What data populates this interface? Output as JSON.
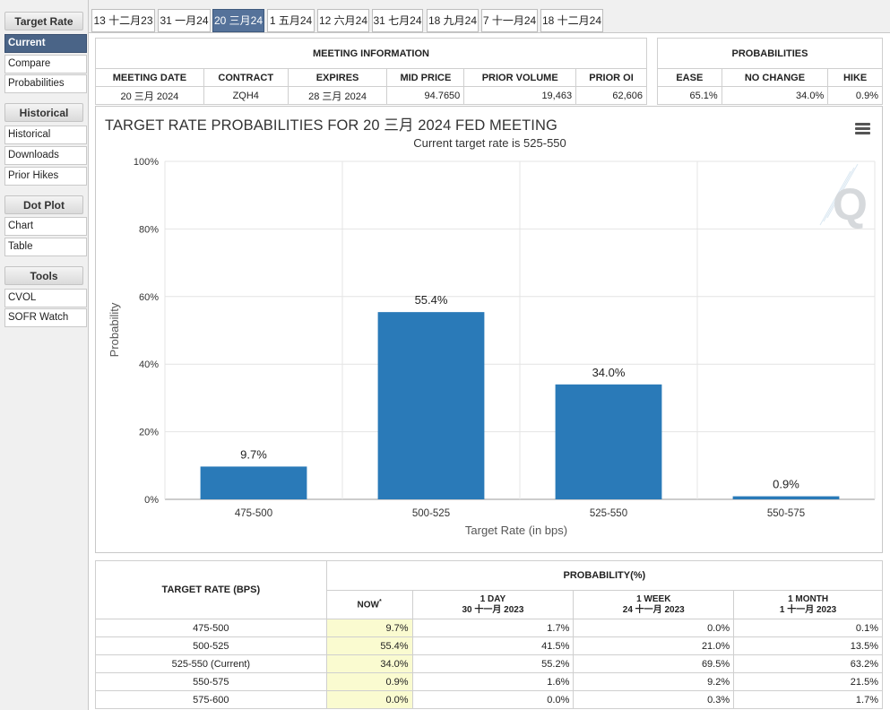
{
  "sidebar": {
    "sections": [
      {
        "title": "Target Rate",
        "items": [
          {
            "label": "Current",
            "active": true
          },
          {
            "label": "Compare",
            "active": false
          },
          {
            "label": "Probabilities",
            "active": false
          }
        ]
      },
      {
        "title": "Historical",
        "items": [
          {
            "label": "Historical",
            "active": false
          },
          {
            "label": "Downloads",
            "active": false
          },
          {
            "label": "Prior Hikes",
            "active": false
          }
        ]
      },
      {
        "title": "Dot Plot",
        "items": [
          {
            "label": "Chart",
            "active": false
          },
          {
            "label": "Table",
            "active": false
          }
        ]
      },
      {
        "title": "Tools",
        "items": [
          {
            "label": "CVOL",
            "active": false
          },
          {
            "label": "SOFR Watch",
            "active": false
          }
        ]
      }
    ]
  },
  "tabs": [
    {
      "label": "13 十二月23",
      "active": false
    },
    {
      "label": "31 一月24",
      "active": false
    },
    {
      "label": "20 三月24",
      "active": true
    },
    {
      "label": "1 五月24",
      "active": false
    },
    {
      "label": "12 六月24",
      "active": false
    },
    {
      "label": "31 七月24",
      "active": false
    },
    {
      "label": "18 九月24",
      "active": false
    },
    {
      "label": "7 十一月24",
      "active": false
    },
    {
      "label": "18 十二月24",
      "active": false
    }
  ],
  "meeting_info": {
    "title": "MEETING INFORMATION",
    "headers": [
      "MEETING DATE",
      "CONTRACT",
      "EXPIRES",
      "MID PRICE",
      "PRIOR VOLUME",
      "PRIOR OI"
    ],
    "values": [
      "20 三月 2024",
      "ZQH4",
      "28 三月 2024",
      "94.7650",
      "19,463",
      "62,606"
    ]
  },
  "probabilities": {
    "title": "PROBABILITIES",
    "headers": [
      "EASE",
      "NO CHANGE",
      "HIKE"
    ],
    "values": [
      "65.1%",
      "34.0%",
      "0.9%"
    ]
  },
  "chart_data": {
    "type": "bar",
    "title": "TARGET RATE PROBABILITIES FOR 20 三月 2024 FED MEETING",
    "subtitle": "Current target rate is 525-550",
    "xlabel": "Target Rate (in bps)",
    "ylabel": "Probability",
    "categories": [
      "475-500",
      "500-525",
      "525-550",
      "550-575"
    ],
    "values": [
      9.7,
      55.4,
      34.0,
      0.9
    ],
    "data_labels": [
      "9.7%",
      "55.4%",
      "34.0%",
      "0.9%"
    ],
    "yticks": [
      "0%",
      "20%",
      "40%",
      "60%",
      "80%",
      "100%"
    ],
    "ylim": [
      0,
      100
    ],
    "grid": true,
    "color": "#2a7ab8"
  },
  "prob_table": {
    "col_header": "TARGET RATE (BPS)",
    "group_header": "PROBABILITY(%)",
    "now_label": "NOW",
    "now_mark": "*",
    "periods": [
      {
        "label": "1 DAY",
        "date": "30 十一月 2023"
      },
      {
        "label": "1 WEEK",
        "date": "24 十一月 2023"
      },
      {
        "label": "1 MONTH",
        "date": "1 十一月 2023"
      }
    ],
    "rows": [
      {
        "rate": "475-500",
        "now": "9.7%",
        "d1": "1.7%",
        "w1": "0.0%",
        "m1": "0.1%"
      },
      {
        "rate": "500-525",
        "now": "55.4%",
        "d1": "41.5%",
        "w1": "21.0%",
        "m1": "13.5%"
      },
      {
        "rate": "525-550 (Current)",
        "now": "34.0%",
        "d1": "55.2%",
        "w1": "69.5%",
        "m1": "63.2%"
      },
      {
        "rate": "550-575",
        "now": "0.9%",
        "d1": "1.6%",
        "w1": "9.2%",
        "m1": "21.5%"
      },
      {
        "rate": "575-600",
        "now": "0.0%",
        "d1": "0.0%",
        "w1": "0.3%",
        "m1": "1.7%"
      }
    ]
  }
}
